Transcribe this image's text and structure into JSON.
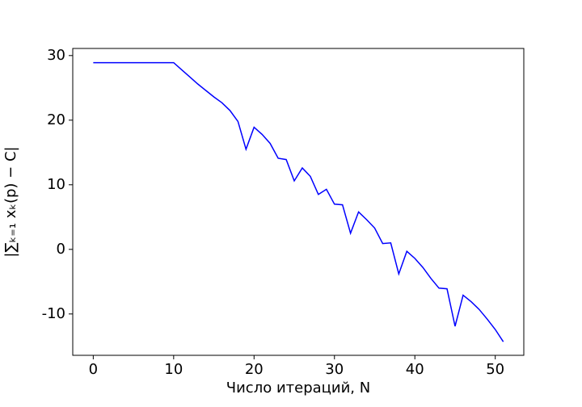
{
  "chart_data": {
    "type": "line",
    "xlabel": "Число итераций, N",
    "ylabel": "|∑ₖ₌₁ xₖ(p) − C|",
    "x": [
      0,
      1,
      2,
      3,
      4,
      5,
      6,
      7,
      8,
      9,
      10,
      11,
      12,
      13,
      14,
      15,
      16,
      17,
      18,
      19,
      20,
      21,
      22,
      23,
      24,
      25,
      26,
      27,
      28,
      29,
      30,
      31,
      32,
      33,
      34,
      35,
      36,
      37,
      38,
      39,
      40,
      41,
      42,
      43,
      44,
      45,
      46,
      47,
      48,
      49,
      50,
      51
    ],
    "series": [
      {
        "color": "#0000ff",
        "values": [
          28.9,
          28.9,
          28.9,
          28.9,
          28.9,
          28.9,
          28.9,
          28.9,
          28.9,
          28.9,
          28.9,
          27.8,
          26.7,
          25.6,
          24.6,
          23.6,
          22.7,
          21.5,
          19.8,
          15.5,
          18.9,
          17.8,
          16.4,
          14.1,
          13.9,
          10.6,
          12.6,
          11.3,
          8.5,
          9.3,
          7.0,
          6.9,
          2.5,
          5.8,
          4.6,
          3.3,
          0.9,
          1.0,
          -3.8,
          -0.3,
          -1.4,
          -2.8,
          -4.5,
          -6.0,
          -6.1,
          -11.9,
          -7.1,
          -8.1,
          -9.3,
          -10.8,
          -12.4,
          -14.3
        ]
      }
    ],
    "xlim": [
      -2.55,
      53.55
    ],
    "xticks": [
      0,
      10,
      20,
      30,
      40,
      50
    ],
    "ylim": [
      -16.4,
      31.1
    ],
    "yticks": [
      -10,
      0,
      10,
      20,
      30
    ]
  }
}
